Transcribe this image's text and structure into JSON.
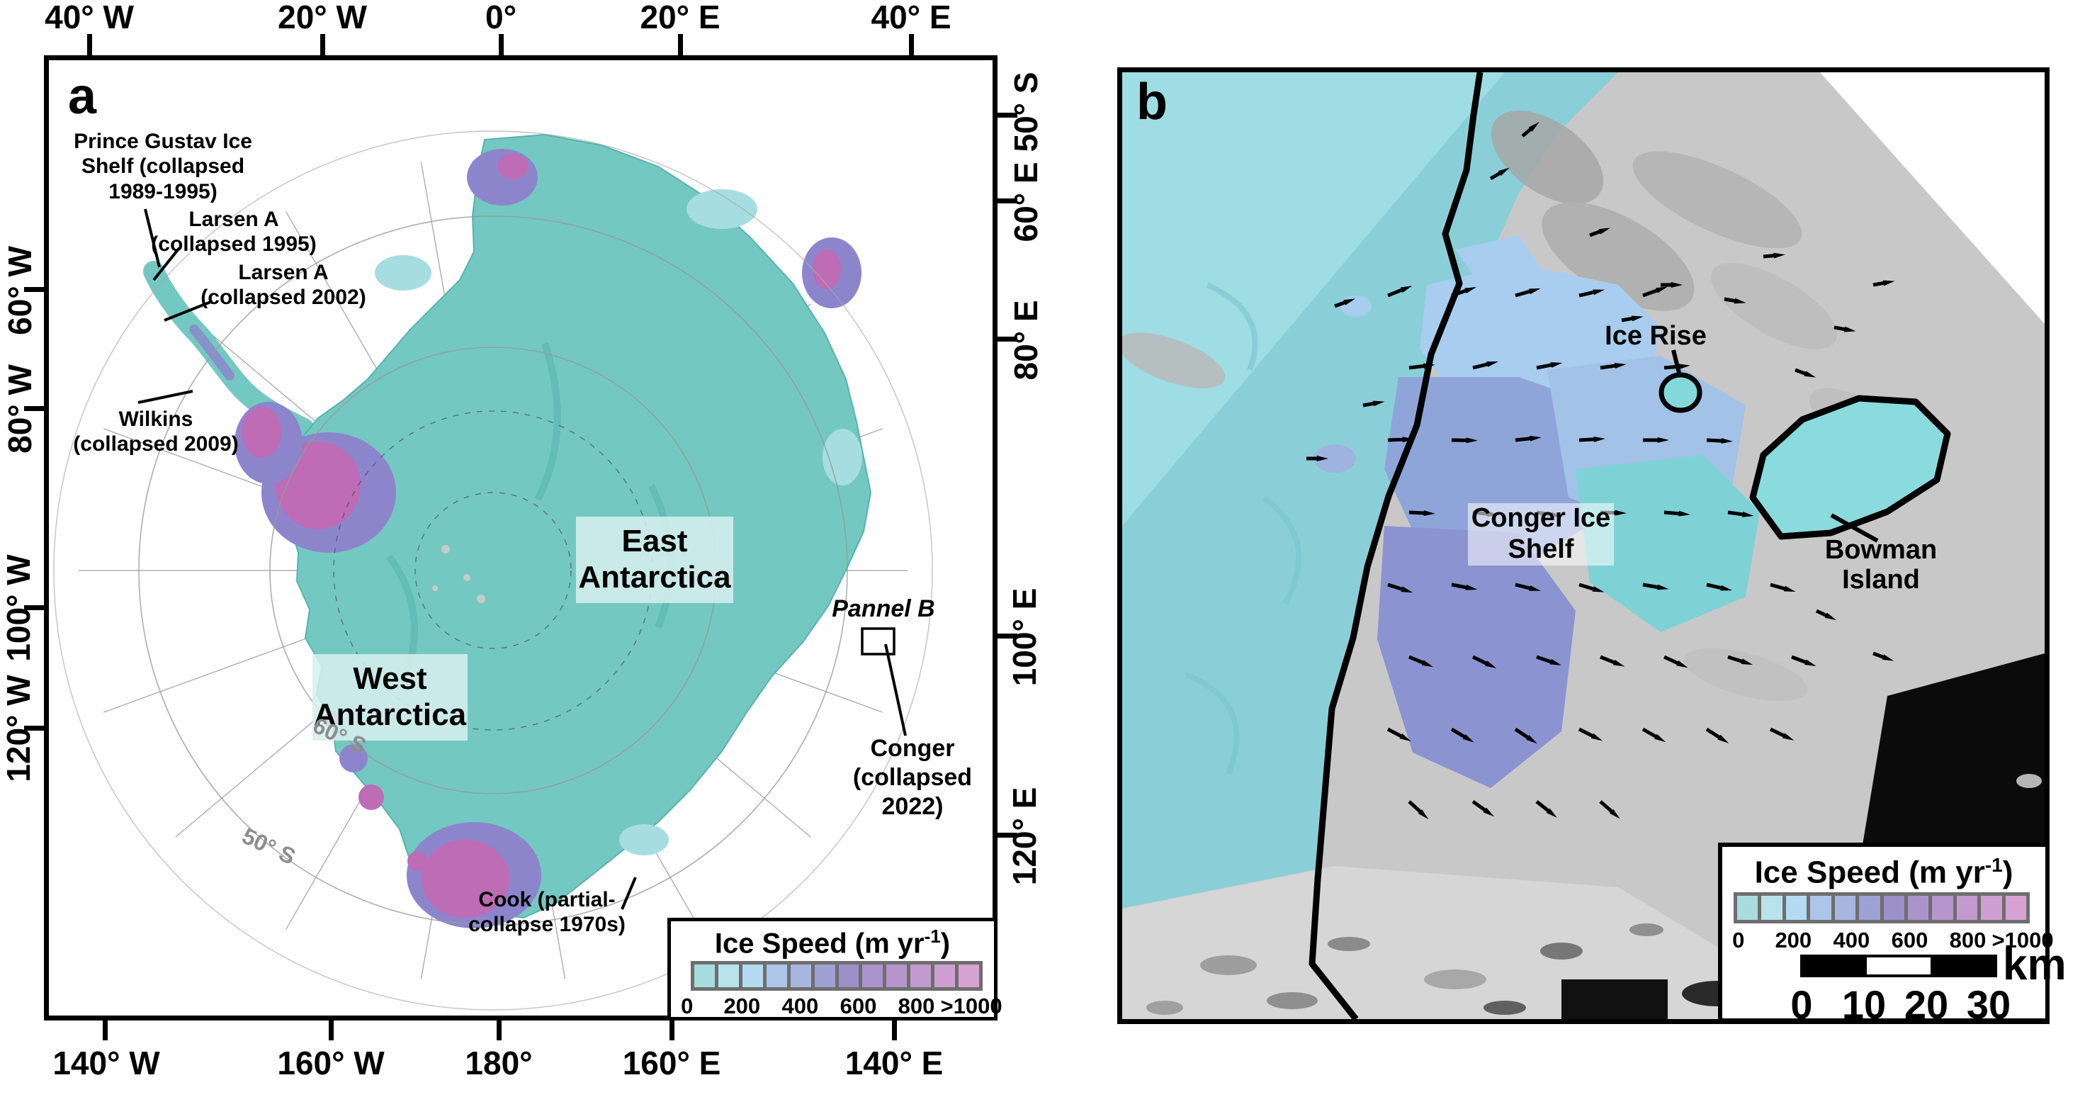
{
  "panel_a": {
    "letter": "a",
    "axis_top": [
      "40° W",
      "20° W",
      "0°",
      "20° E",
      "40° E"
    ],
    "axis_left": [
      "60° W",
      "80° W",
      "100° W",
      "120° W"
    ],
    "axis_right": [
      "50° S",
      "60° E",
      "80° E",
      "100° E",
      "120° E"
    ],
    "axis_bottom": [
      "140° W",
      "160° W",
      "180°",
      "160° E",
      "140° E"
    ],
    "graticule_labels": {
      "lat60": "60° S",
      "lat50": "50° S"
    },
    "regions": {
      "west": [
        "West",
        "Antarctica"
      ],
      "east": [
        "East",
        "Antarctica"
      ]
    },
    "annotations": {
      "prince_gustav": [
        "Prince Gustav Ice",
        "Shelf (collapsed",
        "1989-1995)"
      ],
      "larsen_1995": [
        "Larsen A",
        "(collapsed 1995)"
      ],
      "larsen_2002": [
        "Larsen A",
        "(collapsed 2002)"
      ],
      "wilkins": [
        "Wilkins",
        "(collapsed 2009)"
      ],
      "cook": [
        "Cook (partial-",
        "collapse 1970s)"
      ],
      "pannel_b": "Pannel B",
      "conger": [
        "Conger",
        "(collapsed",
        "2022)"
      ]
    }
  },
  "panel_b": {
    "letter": "b",
    "labels": {
      "ice_rise": "Ice Rise",
      "conger_shelf": [
        "Conger Ice",
        "Shelf"
      ],
      "bowman": [
        "Bowman",
        "Island"
      ]
    },
    "scalebar": {
      "unit": "km",
      "ticks": [
        "0",
        "10",
        "20",
        "30"
      ]
    }
  },
  "legend": {
    "title_main": "Ice Speed (m yr",
    "title_sup": "-1",
    "title_end": ")",
    "ticks": [
      "0",
      "200",
      "400",
      "600",
      "800",
      ">1000"
    ],
    "colors": [
      "#a8dcdf",
      "#b9e3eb",
      "#b4dbf1",
      "#abc6e9",
      "#a7b5df",
      "#9da1d3",
      "#9b90ca",
      "#ab94cc",
      "#b595cc",
      "#c39ad0",
      "#cf9fd3",
      "#d6a3d3"
    ]
  },
  "map_colors": {
    "continent_teal": "#74c8c2",
    "speed_purple": "#8d85cc",
    "speed_magenta": "#bd6cb5",
    "ocean_cyan": "#8acfd8",
    "terrain_gray": "#c8c8c8",
    "open_water_black": "#0b0b0b"
  }
}
